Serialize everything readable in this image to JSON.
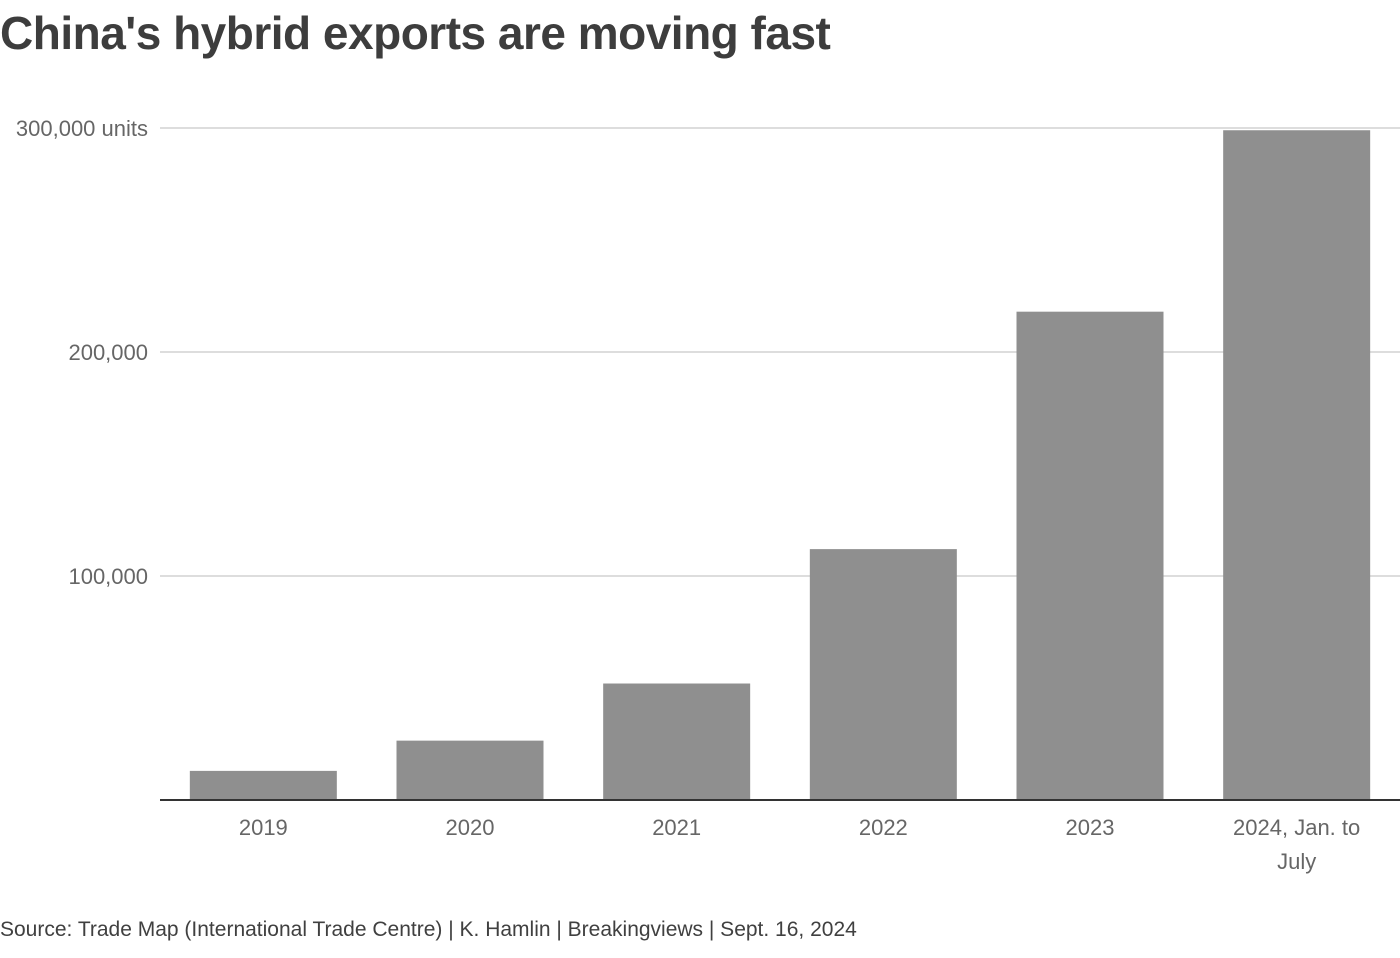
{
  "title": "China's hybrid exports are moving fast",
  "source": "Source: Trade Map (International Trade Centre) | K. Hamlin | Breakingviews | Sept. 16, 2024",
  "colors": {
    "bar": "#8f8f8f",
    "grid": "#dddddd",
    "axis": "#333333",
    "text": "#666666"
  },
  "chart_data": {
    "type": "bar",
    "title": "China's hybrid exports are moving fast",
    "xlabel": "",
    "ylabel": "units",
    "categories": [
      "2019",
      "2020",
      "2021",
      "2022",
      "2023",
      "2024, Jan. to July"
    ],
    "category_lines": [
      [
        "2019"
      ],
      [
        "2020"
      ],
      [
        "2021"
      ],
      [
        "2022"
      ],
      [
        "2023"
      ],
      [
        "2024, Jan. to",
        "July"
      ]
    ],
    "values": [
      13000,
      26500,
      52000,
      112000,
      218000,
      299000
    ],
    "ylim": [
      0,
      300000
    ],
    "yticks": [
      100000,
      200000,
      300000
    ],
    "ytick_labels": [
      "100,000",
      "200,000",
      "300,000 units"
    ],
    "grid": true
  }
}
